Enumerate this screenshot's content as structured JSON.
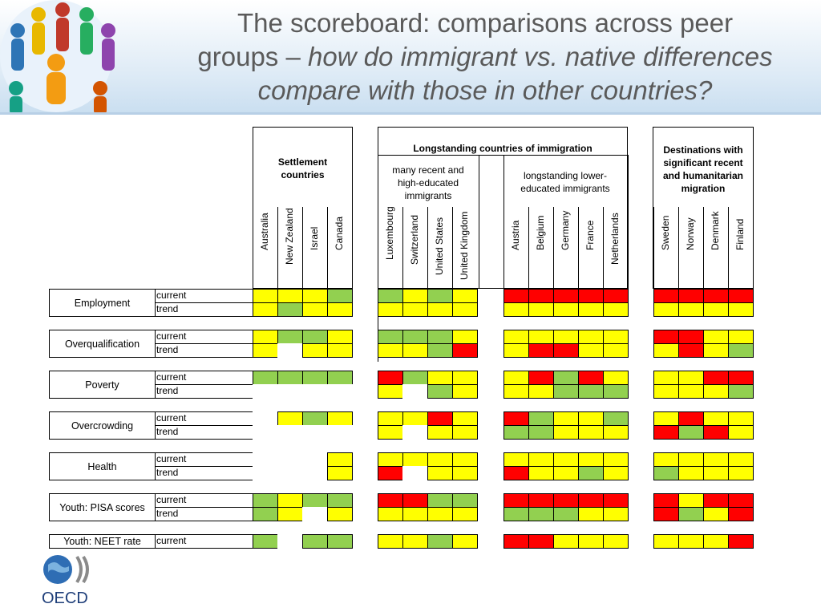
{
  "title": {
    "line1": "The scoreboard: comparisons across peer",
    "line2_plain": "groups – ",
    "line2_italic": "how do immigrant vs. native differences",
    "line3_italic": "compare with those in other countries?"
  },
  "groups": {
    "settlement": "Settlement countries",
    "longstanding": "Longstanding countries of immigration",
    "recent_high": "many recent  and high-educated immigrants",
    "lower_educated": "longstanding lower-educated immigrants",
    "destinations": "Destinations with significant recent and humanitarian migration"
  },
  "countries": [
    "Australia",
    "New Zealand",
    "Israel",
    "Canada",
    "Luxembourg",
    "Switzerland",
    "United States",
    "United Kingdom",
    "Austria",
    "Belgium",
    "Germany",
    "France",
    "Netherlands",
    "Sweden",
    "Norway",
    "Denmark",
    "Finland"
  ],
  "legend_colors": {
    "g": "#92d050",
    "y": "#ffff00",
    "r": "#ff0000"
  },
  "indicators": [
    {
      "name": "Employment",
      "rows": [
        {
          "label": "current",
          "cells": "yyyg|gygy|rrrrr|rrrr"
        },
        {
          "label": "trend",
          "cells": "ygyy|yyyy|yyyyy|yyyy"
        }
      ]
    },
    {
      "name": "Overqualification",
      "rows": [
        {
          "label": "current",
          "cells": "yggy|gggy|yyyyy|rryy"
        },
        {
          "label": "trend",
          "cells": "y.yy|yygr|yrryy|yryg"
        }
      ]
    },
    {
      "name": "Poverty",
      "rows": [
        {
          "label": "current",
          "cells": "gggg|rgyy|yrgry|yyrr"
        },
        {
          "label": "trend",
          "cells": "....|y.gy|yyggg|yyyg"
        }
      ]
    },
    {
      "name": "Overcrowding",
      "rows": [
        {
          "label": "current",
          "cells": ".ygy|yyry|rgyyg|yryy"
        },
        {
          "label": "trend",
          "cells": "....|y.yy|ggyyy|rgry"
        }
      ]
    },
    {
      "name": "Health",
      "rows": [
        {
          "label": "current",
          "cells": "...y|yyyy|yyyyy|yyyy"
        },
        {
          "label": "trend",
          "cells": "...y|r.yy|ryygy|gyyy"
        }
      ]
    },
    {
      "name": "Youth: PISA scores",
      "rows": [
        {
          "label": "current",
          "cells": "gygg|rrgg|rrrrr|ryrr"
        },
        {
          "label": "trend",
          "cells": "gy.y|yyyy|gggyy|rgyr"
        }
      ]
    },
    {
      "name": "Youth: NEET rate",
      "rows": [
        {
          "label": "current",
          "cells": "g.gg|yygy|rryyy|yyyr"
        }
      ]
    }
  ],
  "logo": {
    "text": "OECD",
    "icon": "oecd-globe-icon"
  }
}
